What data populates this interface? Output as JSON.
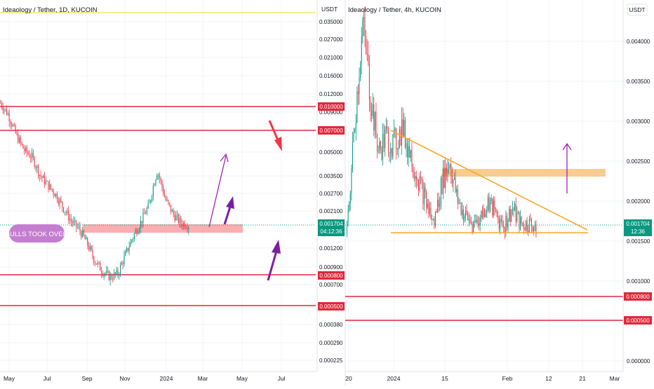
{
  "colors": {
    "bull": "#089981",
    "bear": "#f23645",
    "level_red": "#e0283a",
    "yellow": "#f5e663",
    "orange": "#f7a829",
    "zone_pink": "#f8a5a8",
    "zone_orange": "#f9c98a",
    "purple": "#9c27b0",
    "purple_light": "#a855d8",
    "badge": "#c47ed0",
    "last_price_bg": "#089981",
    "grid": "#f0f3fa",
    "axis_text": "#131722"
  },
  "left_panel": {
    "title": "Ideaology / Tether, 1D, KUCOIN",
    "currency": "USDT",
    "annotation": "BULLS TOOK OVER",
    "last_price_label": "0.001704",
    "countdown": "04:12:36",
    "price_axis": [
      "0.035000",
      "0.027000",
      "0.021000",
      "0.016000",
      "0.012000",
      "0.009000",
      "0.005000",
      "0.003500",
      "0.002700",
      "0.002100",
      "0.001200",
      "0.000900",
      "0.000700",
      "0.000380",
      "0.000290",
      "0.000225"
    ],
    "level_labels": [
      "0.010000",
      "0.007000",
      "0.000800",
      "0.000500"
    ],
    "time_axis": [
      "May",
      "Jul",
      "Sep",
      "Nov",
      "2024",
      "Mar",
      "May",
      "Jul"
    ]
  },
  "right_panel": {
    "title": "Ideaology / Tether, 4h, KUCOIN",
    "currency": "USDT",
    "last_price_label": "0.001704",
    "countdown": "12:36",
    "price_axis": [
      "0.004000",
      "0.003500",
      "0.003000",
      "0.002500",
      "0.002000",
      "0.001500",
      "0.001000",
      "0.000500",
      "0.000000"
    ],
    "level_labels": [
      "0.000800",
      "0.000500"
    ],
    "time_axis": [
      "20",
      "2024",
      "15",
      "Feb",
      "12",
      "21",
      "Mar"
    ]
  },
  "chart_data": [
    {
      "type": "candlestick",
      "title": "Ideaology / Tether, 1D, KUCOIN",
      "price_scale": "log",
      "ylim": [
        0.000225,
        0.035
      ],
      "x_ticks": [
        "May",
        "Jul",
        "Sep",
        "Nov",
        "2024",
        "Mar",
        "May",
        "Jul"
      ],
      "y_ticks": [
        0.035,
        0.027,
        0.021,
        0.016,
        0.012,
        0.009,
        0.005,
        0.0035,
        0.0027,
        0.0021,
        0.0012,
        0.0009,
        0.0007,
        0.00038,
        0.00029,
        0.000225
      ],
      "horizontal_levels": [
        0.01,
        0.007,
        0.0008,
        0.0005,
        0.035
      ],
      "support_zone": [
        0.00162,
        0.00172
      ],
      "close_path": [
        0.0105,
        0.0088,
        0.0065,
        0.0052,
        0.0047,
        0.0036,
        0.0031,
        0.0027,
        0.0022,
        0.0018,
        0.0016,
        0.0013,
        0.001,
        0.00085,
        0.00078,
        0.00082,
        0.0011,
        0.00145,
        0.0018,
        0.0023,
        0.0038,
        0.0025,
        0.002,
        0.00175,
        0.0017
      ],
      "last_price": 0.001704,
      "annotation": "BULLS TOOK OVER"
    },
    {
      "type": "candlestick",
      "title": "Ideaology / Tether, 4h, KUCOIN",
      "price_scale": "linear",
      "ylim": [
        0.0,
        0.0045
      ],
      "x_ticks": [
        "20",
        "2024",
        "15",
        "Feb",
        "12",
        "21",
        "Mar"
      ],
      "y_ticks": [
        0.004,
        0.0035,
        0.003,
        0.0025,
        0.002,
        0.0015,
        0.001,
        0.0005,
        0.0
      ],
      "horizontal_levels": [
        0.0008,
        0.0005
      ],
      "resistance_zone": [
        0.00229,
        0.00238
      ],
      "descending_trendline": [
        [
          0.0029
        ],
        [
          0.00165
        ]
      ],
      "support_trendline": 0.00164,
      "close_path": [
        0.0016,
        0.003,
        0.0042,
        0.0033,
        0.0026,
        0.0028,
        0.0027,
        0.0029,
        0.0026,
        0.0023,
        0.002,
        0.0017,
        0.0022,
        0.0025,
        0.002,
        0.0018,
        0.0017,
        0.0018,
        0.002,
        0.0018,
        0.0017,
        0.0019,
        0.0017,
        0.0017,
        0.0017
      ],
      "last_price": 0.001704
    }
  ]
}
